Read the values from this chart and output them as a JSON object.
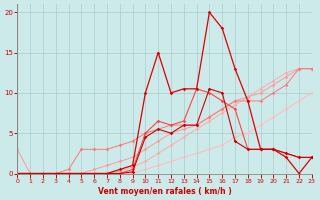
{
  "background_color": "#cceaea",
  "grid_color": "#aacccc",
  "xlabel": "Vent moyen/en rafales ( km/h )",
  "xlim": [
    0,
    23
  ],
  "ylim": [
    0,
    21
  ],
  "yticks": [
    0,
    5,
    10,
    15,
    20
  ],
  "xticks": [
    0,
    1,
    2,
    3,
    4,
    5,
    6,
    7,
    8,
    9,
    10,
    11,
    12,
    13,
    14,
    15,
    16,
    17,
    18,
    19,
    20,
    21,
    22,
    23
  ],
  "lines": [
    {
      "y": [
        0,
        0,
        0,
        0,
        0,
        0,
        0,
        0,
        0,
        0,
        0.5,
        1,
        1.5,
        2,
        2.5,
        3,
        3.5,
        4.5,
        5,
        6,
        7,
        8,
        9,
        10
      ],
      "color": "#ffbbbb",
      "lw": 0.7
    },
    {
      "y": [
        0,
        0,
        0,
        0,
        0,
        0,
        0,
        0,
        0.3,
        0.8,
        1.5,
        2.5,
        3.5,
        4.5,
        5.5,
        6.5,
        7.5,
        8.5,
        9.5,
        10.5,
        11.5,
        12.5,
        13,
        13
      ],
      "color": "#ffaaaa",
      "lw": 0.7
    },
    {
      "y": [
        3,
        0,
        0,
        0,
        0,
        0,
        0.5,
        1,
        1.5,
        2,
        3,
        4,
        5,
        5.5,
        6,
        7,
        8,
        9,
        9.5,
        10,
        11,
        12,
        13,
        13
      ],
      "color": "#ff9999",
      "lw": 0.7
    },
    {
      "y": [
        0,
        0,
        0,
        0,
        0.5,
        3,
        3,
        3,
        3.5,
        4,
        5,
        5.5,
        6,
        6,
        6,
        7,
        8,
        9,
        9,
        9,
        10,
        11,
        13,
        13
      ],
      "color": "#ff7777",
      "lw": 0.7
    },
    {
      "y": [
        0,
        0,
        0,
        0,
        0,
        0,
        0,
        0,
        0,
        0.5,
        5,
        6.5,
        6,
        6.5,
        10.5,
        10,
        9,
        8,
        3,
        3,
        3,
        2.5,
        2,
        2
      ],
      "color": "#ff4444",
      "lw": 0.8
    },
    {
      "y": [
        0,
        0,
        0,
        0,
        0,
        0,
        0,
        0,
        0.5,
        1,
        10,
        15,
        10,
        10.5,
        10.5,
        20,
        18,
        13,
        9,
        3,
        3,
        2,
        0,
        2
      ],
      "color": "#dd0000",
      "lw": 0.9
    },
    {
      "y": [
        0,
        0,
        0,
        0,
        0,
        0,
        0,
        0,
        0,
        0.2,
        4.5,
        5.5,
        5,
        6,
        6,
        10.5,
        10,
        4,
        3,
        3,
        3,
        2.5,
        2,
        2
      ],
      "color": "#cc0000",
      "lw": 0.8
    }
  ],
  "tick_color": "#cc0000",
  "label_color": "#cc0000",
  "spine_color": "#888888"
}
